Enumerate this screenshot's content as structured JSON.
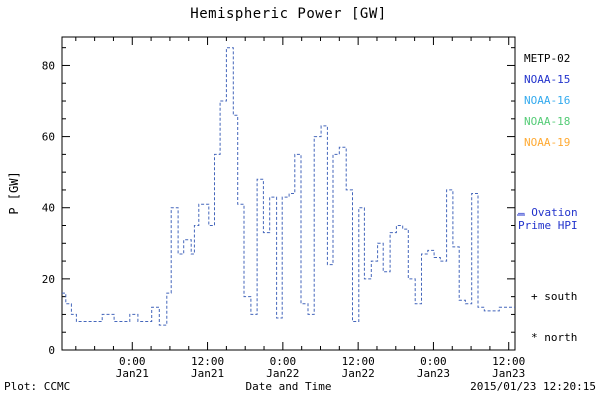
{
  "title": "Hemispheric Power [GW]",
  "legend": {
    "satellites": [
      {
        "label": "METP-02",
        "color": "#000000"
      },
      {
        "label": "NOAA-15",
        "color": "#2233cc"
      },
      {
        "label": "NOAA-16",
        "color": "#33aaee"
      },
      {
        "label": "NOAA-18",
        "color": "#55cc77"
      },
      {
        "label": "NOAA-19",
        "color": "#ffaa33"
      }
    ],
    "ovation_line1": "– Ovation",
    "ovation_line2": "Prime HPI",
    "ovation_color": "#2233cc",
    "south_marker": "+ south",
    "north_marker": "* north"
  },
  "footer": {
    "plot_credit": "Plot: CCMC",
    "timestamp": "2015/01/23 12:20:15"
  },
  "chart_data": {
    "type": "line",
    "line_style": "dashed-step",
    "line_color": "#4466bb",
    "title": "Hemispheric Power [GW]",
    "xlabel": "Date and Time",
    "ylabel": "P [GW]",
    "ylim": [
      0,
      88
    ],
    "y_ticks": [
      0,
      20,
      40,
      60,
      80
    ],
    "y_minor_step": 5,
    "x_minor_step_hours": 3,
    "xlim_hours_from_jan21_0000": [
      -11.2,
      61
    ],
    "x_ticks": [
      {
        "t": 0,
        "time": "0:00",
        "date": "Jan21"
      },
      {
        "t": 12,
        "time": "12:00",
        "date": "Jan21"
      },
      {
        "t": 24,
        "time": "0:00",
        "date": "Jan22"
      },
      {
        "t": 36,
        "time": "12:00",
        "date": "Jan22"
      },
      {
        "t": 48,
        "time": "0:00",
        "date": "Jan23"
      },
      {
        "t": 60,
        "time": "12:00",
        "date": "Jan23"
      }
    ],
    "series": [
      {
        "name": "Ovation Prime HPI",
        "units": "GW",
        "points": [
          [
            -11.2,
            16
          ],
          [
            -10.6,
            13
          ],
          [
            -9.7,
            10
          ],
          [
            -8.9,
            8
          ],
          [
            -4.8,
            10
          ],
          [
            -2.9,
            8
          ],
          [
            -0.4,
            10
          ],
          [
            0.9,
            8
          ],
          [
            3.1,
            12
          ],
          [
            4.3,
            7
          ],
          [
            5.5,
            16
          ],
          [
            6.2,
            40
          ],
          [
            7.3,
            27
          ],
          [
            8.2,
            31
          ],
          [
            9.4,
            27
          ],
          [
            9.9,
            35
          ],
          [
            10.6,
            41
          ],
          [
            12.2,
            35
          ],
          [
            13.1,
            55
          ],
          [
            14.0,
            70
          ],
          [
            15.0,
            85
          ],
          [
            16.1,
            66
          ],
          [
            16.8,
            41
          ],
          [
            17.8,
            15
          ],
          [
            18.9,
            10
          ],
          [
            19.9,
            48
          ],
          [
            20.9,
            33
          ],
          [
            21.9,
            43
          ],
          [
            23.0,
            9
          ],
          [
            23.9,
            43
          ],
          [
            25.0,
            44
          ],
          [
            25.9,
            55
          ],
          [
            26.9,
            13
          ],
          [
            28.0,
            10
          ],
          [
            29.0,
            60
          ],
          [
            30.1,
            63
          ],
          [
            31.1,
            24
          ],
          [
            32.0,
            55
          ],
          [
            33.0,
            57
          ],
          [
            34.1,
            45
          ],
          [
            35.1,
            8
          ],
          [
            36.1,
            40
          ],
          [
            37.0,
            20
          ],
          [
            38.1,
            25
          ],
          [
            39.1,
            30
          ],
          [
            40.0,
            22
          ],
          [
            41.1,
            33
          ],
          [
            42.1,
            35
          ],
          [
            43.1,
            34
          ],
          [
            44.0,
            20
          ],
          [
            45.1,
            13
          ],
          [
            46.1,
            27
          ],
          [
            47.1,
            28
          ],
          [
            48.1,
            26
          ],
          [
            49.1,
            25
          ],
          [
            50.1,
            45
          ],
          [
            51.1,
            29
          ],
          [
            52.1,
            14
          ],
          [
            53.1,
            13
          ],
          [
            54.1,
            44
          ],
          [
            55.1,
            12
          ],
          [
            56.1,
            11
          ],
          [
            58.5,
            12
          ]
        ]
      }
    ]
  }
}
